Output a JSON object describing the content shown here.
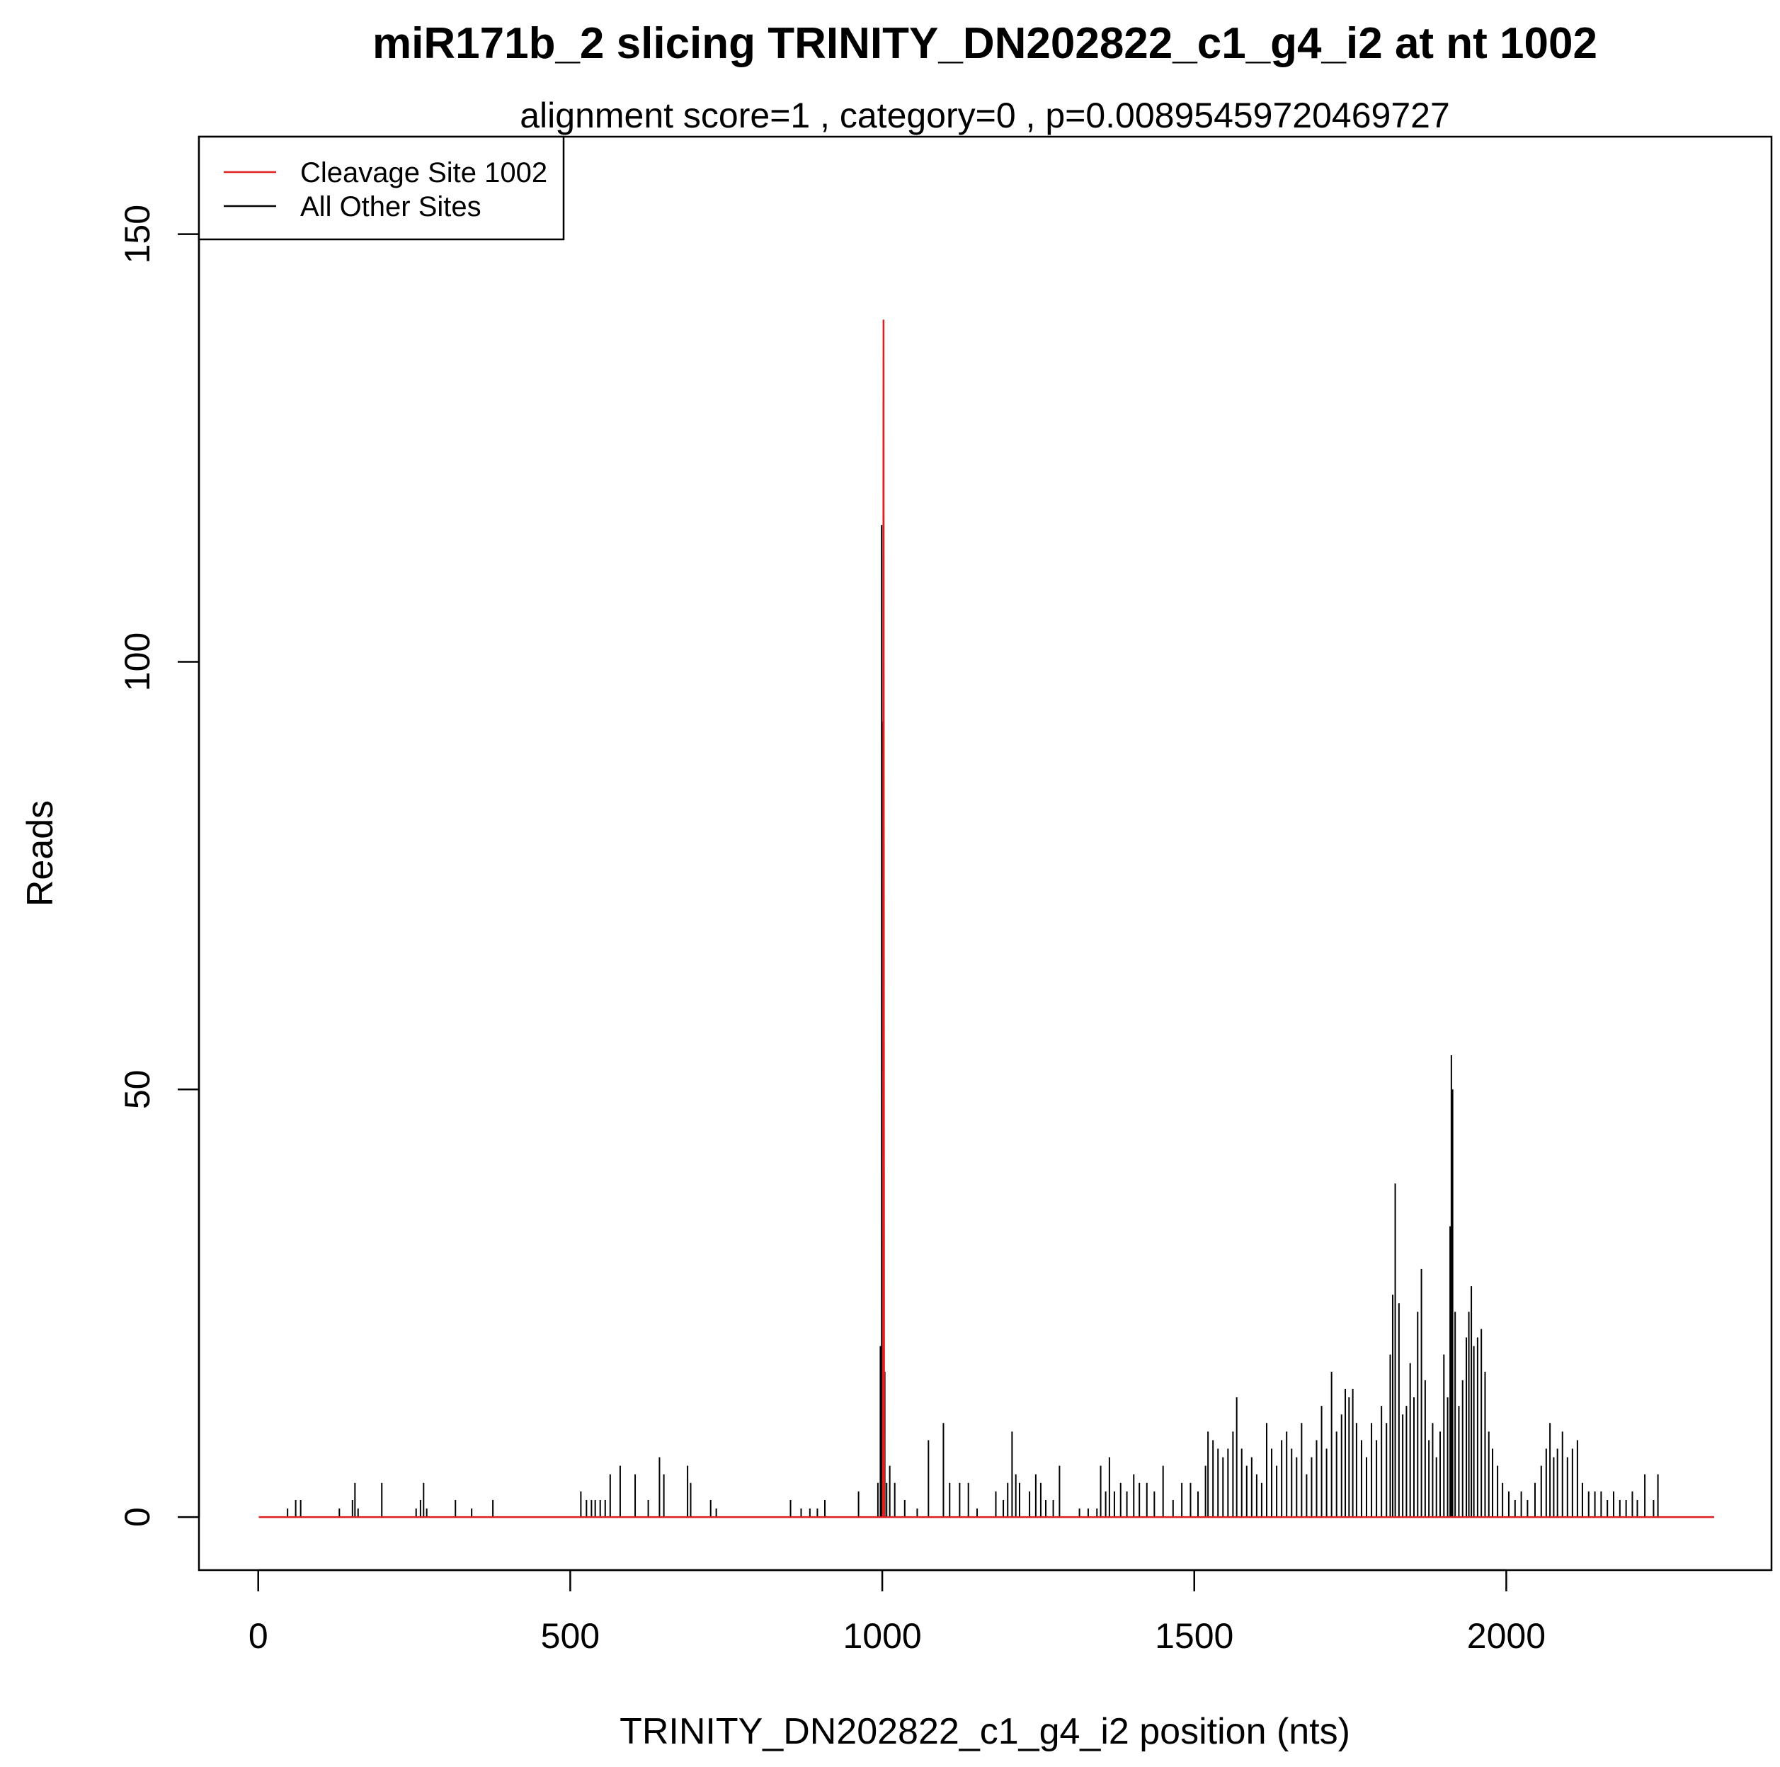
{
  "chart_data": {
    "type": "line",
    "title": "miR171b_2 slicing TRINITY_DN202822_c1_g4_i2 at nt 1002",
    "subtitle": "alignment score=1 , category=0 , p=0.00895459720469727",
    "xlabel": "TRINITY_DN202822_c1_g4_i2 position (nts)",
    "ylabel": "Reads",
    "xlim": [
      -95,
      2425
    ],
    "ylim": [
      -6.2,
      161.4
    ],
    "x_ticks": [
      0,
      500,
      1000,
      1500,
      2000
    ],
    "y_ticks": [
      0,
      50,
      100,
      150
    ],
    "legend_position": "top-left",
    "series": [
      {
        "name": "Cleavage Site 1002",
        "color": "#DF2020",
        "points": [
          [
            1,
            0
          ],
          [
            1001,
            0
          ],
          [
            1002,
            140
          ],
          [
            1003,
            0
          ],
          [
            2333,
            0
          ]
        ]
      },
      {
        "name": "All Other Sites",
        "color": "#000000",
        "spikes": [
          [
            47,
            1
          ],
          [
            60,
            2
          ],
          [
            68,
            2
          ],
          [
            130,
            1
          ],
          [
            151,
            2
          ],
          [
            155,
            4
          ],
          [
            160,
            1
          ],
          [
            198,
            4
          ],
          [
            253,
            1
          ],
          [
            260,
            2
          ],
          [
            265,
            4
          ],
          [
            270,
            1
          ],
          [
            316,
            2
          ],
          [
            342,
            1
          ],
          [
            376,
            2
          ],
          [
            517,
            3
          ],
          [
            526,
            2
          ],
          [
            534,
            2
          ],
          [
            540,
            2
          ],
          [
            548,
            2
          ],
          [
            556,
            2
          ],
          [
            564,
            5
          ],
          [
            580,
            6
          ],
          [
            604,
            5
          ],
          [
            625,
            2
          ],
          [
            643,
            7
          ],
          [
            650,
            5
          ],
          [
            688,
            6
          ],
          [
            693,
            4
          ],
          [
            725,
            2
          ],
          [
            734,
            1
          ],
          [
            853,
            2
          ],
          [
            870,
            1
          ],
          [
            884,
            1
          ],
          [
            896,
            1
          ],
          [
            908,
            2
          ],
          [
            962,
            3
          ],
          [
            993,
            4
          ],
          [
            997,
            20
          ],
          [
            999,
            116
          ],
          [
            1000,
            93
          ],
          [
            1004,
            17
          ],
          [
            1007,
            4
          ],
          [
            1012,
            6
          ],
          [
            1020,
            4
          ],
          [
            1036,
            2
          ],
          [
            1056,
            1
          ],
          [
            1074,
            9
          ],
          [
            1098,
            11
          ],
          [
            1108,
            4
          ],
          [
            1124,
            4
          ],
          [
            1138,
            4
          ],
          [
            1152,
            1
          ],
          [
            1182,
            3
          ],
          [
            1194,
            2
          ],
          [
            1201,
            4
          ],
          [
            1208,
            10
          ],
          [
            1214,
            5
          ],
          [
            1220,
            4
          ],
          [
            1236,
            3
          ],
          [
            1246,
            5
          ],
          [
            1254,
            4
          ],
          [
            1262,
            2
          ],
          [
            1274,
            2
          ],
          [
            1284,
            6
          ],
          [
            1316,
            1
          ],
          [
            1330,
            1
          ],
          [
            1344,
            1
          ],
          [
            1350,
            6
          ],
          [
            1358,
            3
          ],
          [
            1364,
            7
          ],
          [
            1372,
            3
          ],
          [
            1382,
            4
          ],
          [
            1392,
            3
          ],
          [
            1403,
            5
          ],
          [
            1412,
            4
          ],
          [
            1424,
            4
          ],
          [
            1436,
            3
          ],
          [
            1450,
            6
          ],
          [
            1466,
            2
          ],
          [
            1480,
            4
          ],
          [
            1494,
            4
          ],
          [
            1506,
            3
          ],
          [
            1518,
            6
          ],
          [
            1522,
            10
          ],
          [
            1530,
            9
          ],
          [
            1538,
            8
          ],
          [
            1546,
            7
          ],
          [
            1554,
            8
          ],
          [
            1562,
            10
          ],
          [
            1568,
            14
          ],
          [
            1576,
            8
          ],
          [
            1584,
            6
          ],
          [
            1592,
            7
          ],
          [
            1600,
            5
          ],
          [
            1608,
            4
          ],
          [
            1616,
            11
          ],
          [
            1624,
            8
          ],
          [
            1632,
            6
          ],
          [
            1640,
            9
          ],
          [
            1648,
            10
          ],
          [
            1656,
            8
          ],
          [
            1664,
            7
          ],
          [
            1672,
            11
          ],
          [
            1680,
            5
          ],
          [
            1688,
            7
          ],
          [
            1696,
            9
          ],
          [
            1704,
            13
          ],
          [
            1712,
            8
          ],
          [
            1720,
            17
          ],
          [
            1728,
            10
          ],
          [
            1736,
            12
          ],
          [
            1742,
            15
          ],
          [
            1748,
            14
          ],
          [
            1754,
            15
          ],
          [
            1760,
            11
          ],
          [
            1768,
            9
          ],
          [
            1776,
            7
          ],
          [
            1784,
            11
          ],
          [
            1792,
            9
          ],
          [
            1800,
            13
          ],
          [
            1808,
            11
          ],
          [
            1814,
            19
          ],
          [
            1818,
            26
          ],
          [
            1822,
            39
          ],
          [
            1828,
            25
          ],
          [
            1834,
            12
          ],
          [
            1840,
            13
          ],
          [
            1846,
            18
          ],
          [
            1852,
            14
          ],
          [
            1858,
            24
          ],
          [
            1864,
            29
          ],
          [
            1870,
            16
          ],
          [
            1876,
            9
          ],
          [
            1882,
            11
          ],
          [
            1888,
            7
          ],
          [
            1894,
            10
          ],
          [
            1900,
            19
          ],
          [
            1906,
            14
          ],
          [
            1910,
            34
          ],
          [
            1912,
            54
          ],
          [
            1914,
            50
          ],
          [
            1918,
            24
          ],
          [
            1924,
            13
          ],
          [
            1930,
            16
          ],
          [
            1936,
            21
          ],
          [
            1940,
            24
          ],
          [
            1944,
            27
          ],
          [
            1948,
            20
          ],
          [
            1954,
            21
          ],
          [
            1960,
            22
          ],
          [
            1966,
            17
          ],
          [
            1972,
            10
          ],
          [
            1978,
            8
          ],
          [
            1986,
            6
          ],
          [
            1994,
            4
          ],
          [
            2004,
            3
          ],
          [
            2014,
            2
          ],
          [
            2024,
            3
          ],
          [
            2034,
            2
          ],
          [
            2046,
            4
          ],
          [
            2056,
            6
          ],
          [
            2064,
            8
          ],
          [
            2070,
            11
          ],
          [
            2076,
            7
          ],
          [
            2082,
            8
          ],
          [
            2090,
            10
          ],
          [
            2098,
            7
          ],
          [
            2106,
            8
          ],
          [
            2114,
            9
          ],
          [
            2122,
            4
          ],
          [
            2132,
            3
          ],
          [
            2142,
            3
          ],
          [
            2152,
            3
          ],
          [
            2162,
            2
          ],
          [
            2172,
            3
          ],
          [
            2182,
            2
          ],
          [
            2192,
            2
          ],
          [
            2202,
            3
          ],
          [
            2210,
            2
          ],
          [
            2222,
            5
          ],
          [
            2236,
            2
          ],
          [
            2243,
            5
          ]
        ]
      }
    ]
  }
}
